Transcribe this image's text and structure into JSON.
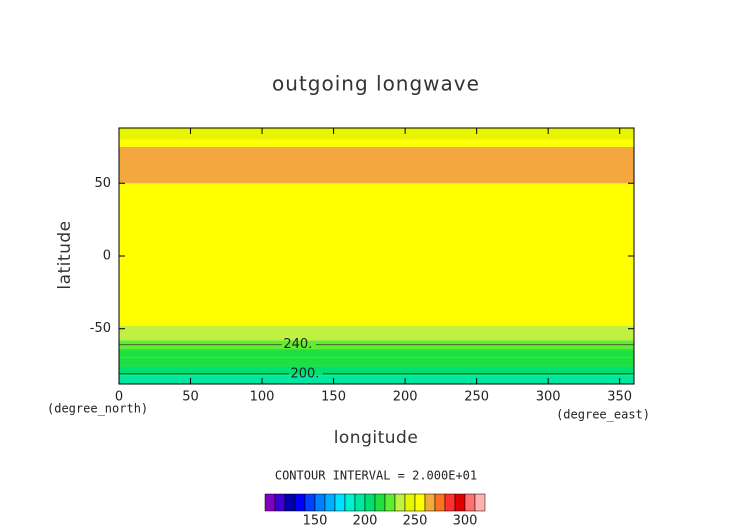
{
  "chart_data": {
    "type": "contour",
    "title": "outgoing longwave",
    "x_label": "longitude",
    "y_label": "latitude",
    "x_unit": "(degree_east)",
    "y_unit": "(degree_north)",
    "xlim": [
      0,
      360
    ],
    "ylim": [
      -88,
      88
    ],
    "xticks": [
      0,
      50,
      100,
      150,
      200,
      250,
      300,
      350
    ],
    "yticks": [
      -50,
      0,
      50
    ],
    "y_bins": [
      -88,
      -82,
      -76,
      -70,
      -64,
      -58,
      -53,
      -48,
      45,
      50,
      75,
      80,
      88
    ],
    "z": [
      195,
      205,
      212,
      218,
      225,
      232,
      238,
      252,
      258,
      268,
      252,
      246
    ],
    "contours": [
      {
        "label": "240.",
        "lat": -61,
        "label_lon": 125
      },
      {
        "label": "200.",
        "lat": -81,
        "label_lon": 130
      }
    ],
    "contour_interval": "CONTOUR INTERVAL = 2.000E+01",
    "colorbar": {
      "levels": [
        100,
        110,
        120,
        130,
        140,
        150,
        160,
        170,
        180,
        190,
        200,
        210,
        220,
        230,
        240,
        250,
        260,
        270,
        280,
        290,
        300,
        310,
        320
      ],
      "colors": [
        "#8000c0",
        "#3c00d0",
        "#0000b0",
        "#0000ff",
        "#0040ff",
        "#0080ff",
        "#00b0ff",
        "#00e0ff",
        "#00f0d0",
        "#00e8a0",
        "#00e070",
        "#20e040",
        "#60ec30",
        "#c0f040",
        "#e8f500",
        "#ffff00",
        "#f5a840",
        "#ff7020",
        "#ff3030",
        "#e00000",
        "#ff7070",
        "#ffb0b0"
      ],
      "ticks": [
        150,
        200,
        250,
        300
      ]
    }
  }
}
